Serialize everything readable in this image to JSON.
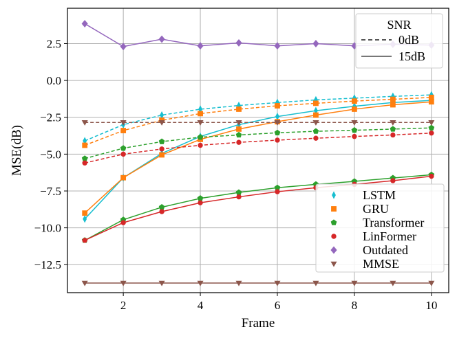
{
  "chart_data": {
    "type": "line",
    "title": "",
    "xlabel": "Frame",
    "ylabel": "MSE(dB)",
    "xlim": [
      0.55,
      10.45
    ],
    "ylim": [
      -14.4,
      4.9
    ],
    "grid": true,
    "x": [
      1,
      2,
      3,
      4,
      5,
      6,
      7,
      8,
      9,
      10
    ],
    "xticks": [
      "2",
      "4",
      "6",
      "8",
      "10"
    ],
    "xtick_values": [
      2,
      4,
      6,
      8,
      10
    ],
    "yticks": [
      "2.5",
      "0.0",
      "−2.5",
      "−5.0",
      "−7.5",
      "−10.0",
      "−12.5"
    ],
    "ytick_values": [
      2.5,
      0.0,
      -2.5,
      -5.0,
      -7.5,
      -10.0,
      -12.5
    ],
    "series": [
      {
        "name": "LSTM",
        "snr": "0dB",
        "color": "#17becf",
        "marker": "diamond-thin",
        "values": [
          -4.1,
          -3.0,
          -2.35,
          -1.95,
          -1.7,
          -1.5,
          -1.32,
          -1.2,
          -1.08,
          -0.98
        ]
      },
      {
        "name": "LSTM",
        "snr": "15dB",
        "color": "#17becf",
        "marker": "diamond-thin",
        "values": [
          -9.4,
          -6.6,
          -4.95,
          -3.8,
          -3.0,
          -2.45,
          -2.05,
          -1.75,
          -1.5,
          -1.35
        ]
      },
      {
        "name": "GRU",
        "snr": "0dB",
        "color": "#ff7f0e",
        "marker": "square",
        "values": [
          -4.4,
          -3.4,
          -2.7,
          -2.25,
          -1.95,
          -1.72,
          -1.55,
          -1.4,
          -1.28,
          -1.15
        ]
      },
      {
        "name": "GRU",
        "snr": "15dB",
        "color": "#ff7f0e",
        "marker": "square",
        "values": [
          -9.0,
          -6.6,
          -5.05,
          -4.0,
          -3.3,
          -2.8,
          -2.35,
          -1.95,
          -1.65,
          -1.45
        ]
      },
      {
        "name": "Transformer",
        "snr": "0dB",
        "color": "#2ca02c",
        "marker": "pentagon",
        "values": [
          -5.3,
          -4.6,
          -4.15,
          -3.85,
          -3.7,
          -3.55,
          -3.45,
          -3.38,
          -3.3,
          -3.22
        ]
      },
      {
        "name": "Transformer",
        "snr": "15dB",
        "color": "#2ca02c",
        "marker": "pentagon",
        "values": [
          -10.85,
          -9.45,
          -8.6,
          -8.0,
          -7.6,
          -7.28,
          -7.05,
          -6.85,
          -6.62,
          -6.4
        ]
      },
      {
        "name": "LinFormer",
        "snr": "0dB",
        "color": "#d62728",
        "marker": "circle",
        "values": [
          -5.6,
          -5.0,
          -4.65,
          -4.4,
          -4.2,
          -4.05,
          -3.92,
          -3.8,
          -3.7,
          -3.57
        ]
      },
      {
        "name": "LinFormer",
        "snr": "15dB",
        "color": "#d62728",
        "marker": "circle",
        "values": [
          -10.85,
          -9.65,
          -8.9,
          -8.3,
          -7.9,
          -7.55,
          -7.28,
          -7.05,
          -6.8,
          -6.5
        ]
      },
      {
        "name": "Outdated",
        "snr": "15dB",
        "color": "#9467bd",
        "marker": "diamond",
        "values": [
          3.85,
          2.3,
          2.8,
          2.35,
          2.55,
          2.35,
          2.5,
          2.35,
          2.45,
          2.4
        ]
      },
      {
        "name": "MMSE",
        "snr": "0dB",
        "color": "#8c564b",
        "marker": "triangle-down",
        "values": [
          -2.85,
          -2.85,
          -2.85,
          -2.85,
          -2.85,
          -2.85,
          -2.85,
          -2.85,
          -2.85,
          -2.85
        ]
      },
      {
        "name": "MMSE",
        "snr": "15dB",
        "color": "#8c564b",
        "marker": "triangle-down",
        "values": [
          -13.75,
          -13.75,
          -13.75,
          -13.75,
          -13.75,
          -13.75,
          -13.75,
          -13.75,
          -13.75,
          -13.75
        ]
      }
    ],
    "legend_snr": {
      "title": "SNR",
      "position": "top-right",
      "entries": [
        {
          "label": "0dB",
          "style": "dashed"
        },
        {
          "label": "15dB",
          "style": "solid"
        }
      ]
    },
    "legend_models": {
      "position": "bottom-right",
      "entries": [
        {
          "label": "LSTM",
          "color": "#17becf",
          "marker": "diamond-thin"
        },
        {
          "label": "GRU",
          "color": "#ff7f0e",
          "marker": "square"
        },
        {
          "label": "Transformer",
          "color": "#2ca02c",
          "marker": "pentagon"
        },
        {
          "label": "LinFormer",
          "color": "#d62728",
          "marker": "circle"
        },
        {
          "label": "Outdated",
          "color": "#9467bd",
          "marker": "diamond"
        },
        {
          "label": "MMSE",
          "color": "#8c564b",
          "marker": "triangle-down"
        }
      ]
    }
  }
}
